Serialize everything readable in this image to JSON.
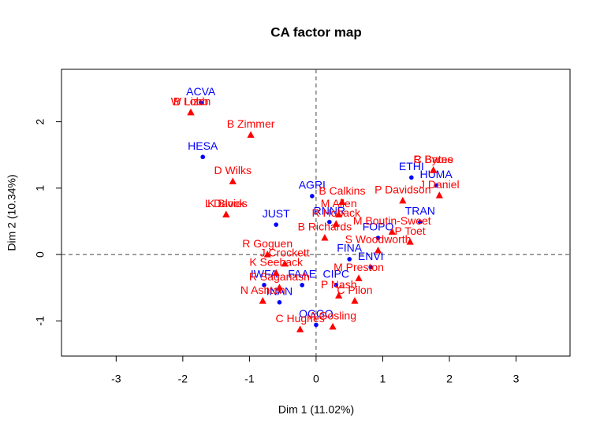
{
  "chart_data": {
    "type": "scatter",
    "title": "CA factor map",
    "xlabel": "Dim 1 (11.02%)",
    "ylabel": "Dim 2 (10.34%)",
    "xlim": [
      -3.82,
      3.81
    ],
    "ylim": [
      -1.53,
      2.79
    ],
    "xticks": [
      -3,
      -2,
      -1,
      0,
      1,
      2,
      3
    ],
    "yticks": [
      -1,
      0,
      1,
      2
    ],
    "reference_lines": {
      "x": 0,
      "y": 0
    },
    "series": [
      {
        "color": "#0000ff",
        "marker": "circle",
        "labels": [
          "ACVA",
          "HESA",
          "AGRI",
          "JUST",
          "ETHI",
          "HUMA",
          "TRAN",
          "FOPO",
          "RNNR",
          "FINA",
          "ENVI",
          "IWFA",
          "FAAE",
          "CIPC",
          "INAN",
          "OGGO"
        ],
        "x": [
          -1.73,
          -1.7,
          -0.06,
          -0.6,
          1.43,
          1.8,
          1.56,
          0.93,
          0.2,
          0.5,
          0.82,
          -0.78,
          -0.21,
          0.3,
          -0.55,
          0.0
        ],
        "y": [
          2.29,
          1.47,
          0.88,
          0.45,
          1.16,
          1.04,
          0.49,
          0.25,
          0.49,
          -0.07,
          -0.19,
          -0.46,
          -0.46,
          -0.46,
          -0.72,
          -1.06
        ]
      },
      {
        "color": "#ff0000",
        "marker": "triangle",
        "labels": [
          "B Lobb",
          "W Lizon",
          "B Zimmer",
          "D Wilks",
          "K Block",
          "L Davies",
          "B Calkins",
          "M Allen",
          "P Davidson",
          "C Bates",
          "R Byrne",
          "J Daniel",
          "R Hoback",
          "B Richards",
          "M Boutin-Sweet",
          "P Toet",
          "S Woodworth",
          "R Goguen",
          "J Crockett",
          "K Seeback",
          "M Preston",
          "R Saganash",
          "P Nash",
          "C Pilon",
          "N Ashton",
          "C Hughes",
          "A Gosling"
        ],
        "x": [
          -1.88,
          -1.88,
          -0.98,
          -1.25,
          -1.35,
          -1.35,
          0.39,
          0.34,
          1.3,
          1.76,
          1.76,
          1.85,
          0.3,
          0.13,
          1.14,
          1.41,
          0.93,
          -0.73,
          -0.47,
          -0.6,
          0.64,
          -0.55,
          0.34,
          0.58,
          -0.8,
          -0.24,
          0.25
        ],
        "y": [
          2.14,
          2.14,
          1.8,
          1.1,
          0.6,
          0.6,
          0.79,
          0.6,
          0.81,
          1.27,
          1.27,
          0.89,
          0.46,
          0.25,
          0.34,
          0.19,
          0.06,
          0.0,
          -0.14,
          -0.28,
          -0.36,
          -0.5,
          -0.62,
          -0.7,
          -0.7,
          -1.13,
          -1.09
        ]
      }
    ]
  }
}
